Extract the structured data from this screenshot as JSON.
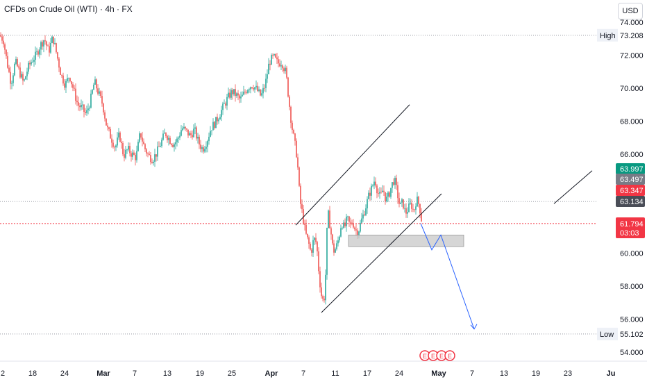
{
  "header": {
    "title": "CFDs on Crude Oil (WTI) · 4h · FX",
    "currency": "USD"
  },
  "colors": {
    "up": "#26a69a",
    "down": "#ef5350",
    "current": "#f23645",
    "projection": "#2962ff",
    "zone": "#c8c8c8"
  },
  "chart_data": {
    "type": "candlestick",
    "ylim": [
      53.5,
      74.7
    ],
    "y_ticks": [
      "74.000",
      "72.000",
      "70.000",
      "68.000",
      "66.000",
      "64.000",
      "62.000",
      "60.000",
      "58.000",
      "56.000",
      "54.000"
    ],
    "x_ticks": [
      {
        "label": "2",
        "bold": false
      },
      {
        "label": "18",
        "bold": false
      },
      {
        "label": "24",
        "bold": false
      },
      {
        "label": "Mar",
        "bold": true
      },
      {
        "label": "7",
        "bold": false
      },
      {
        "label": "13",
        "bold": false
      },
      {
        "label": "19",
        "bold": false
      },
      {
        "label": "25",
        "bold": false
      },
      {
        "label": "Apr",
        "bold": true
      },
      {
        "label": "7",
        "bold": false
      },
      {
        "label": "11",
        "bold": false
      },
      {
        "label": "17",
        "bold": false
      },
      {
        "label": "24",
        "bold": false
      },
      {
        "label": "May",
        "bold": true
      },
      {
        "label": "7",
        "bold": false
      },
      {
        "label": "13",
        "bold": false
      },
      {
        "label": "19",
        "bold": false
      },
      {
        "label": "23",
        "bold": false
      },
      {
        "label": "Ju",
        "bold": true
      }
    ],
    "high": {
      "label": "High",
      "value": "73.208"
    },
    "low": {
      "label": "Low",
      "value": "55.102"
    },
    "price_tags": [
      {
        "value": "63.997",
        "color": "#089981"
      },
      {
        "value": "63.497",
        "color": "#787b86"
      },
      {
        "value": "63.347",
        "color": "#f23645"
      },
      {
        "value": "63.134",
        "color": "#4a4d57"
      }
    ],
    "current": {
      "value": "61.794",
      "countdown": "03:03"
    },
    "path": [
      [
        0,
        73.2
      ],
      [
        5,
        72.9
      ],
      [
        10,
        71.6
      ],
      [
        16,
        70.3
      ],
      [
        22,
        71.6
      ],
      [
        28,
        71.0
      ],
      [
        34,
        70.3
      ],
      [
        40,
        71.2
      ],
      [
        46,
        71.7
      ],
      [
        52,
        72.0
      ],
      [
        58,
        72.6
      ],
      [
        64,
        73.0
      ],
      [
        70,
        72.2
      ],
      [
        76,
        73.1
      ],
      [
        82,
        72.0
      ],
      [
        88,
        70.8
      ],
      [
        94,
        70.2
      ],
      [
        100,
        70.8
      ],
      [
        106,
        69.9
      ],
      [
        112,
        69.0
      ],
      [
        118,
        68.8
      ],
      [
        124,
        68.4
      ],
      [
        130,
        69.2
      ],
      [
        136,
        70.4
      ],
      [
        142,
        69.7
      ],
      [
        148,
        69.0
      ],
      [
        154,
        67.6
      ],
      [
        160,
        67.0
      ],
      [
        166,
        66.4
      ],
      [
        172,
        67.2
      ],
      [
        178,
        65.9
      ],
      [
        184,
        66.3
      ],
      [
        190,
        66.0
      ],
      [
        196,
        65.8
      ],
      [
        202,
        67.3
      ],
      [
        208,
        66.4
      ],
      [
        214,
        65.9
      ],
      [
        220,
        65.7
      ],
      [
        226,
        66.1
      ],
      [
        232,
        66.7
      ],
      [
        238,
        67.3
      ],
      [
        244,
        66.9
      ],
      [
        250,
        66.6
      ],
      [
        256,
        66.9
      ],
      [
        262,
        67.6
      ],
      [
        268,
        67.4
      ],
      [
        274,
        67.1
      ],
      [
        280,
        67.5
      ],
      [
        286,
        66.7
      ],
      [
        292,
        66.3
      ],
      [
        298,
        66.8
      ],
      [
        304,
        67.6
      ],
      [
        310,
        67.9
      ],
      [
        316,
        68.4
      ],
      [
        322,
        68.9
      ],
      [
        328,
        69.4
      ],
      [
        334,
        69.8
      ],
      [
        340,
        69.6
      ],
      [
        346,
        69.3
      ],
      [
        352,
        69.7
      ],
      [
        358,
        70.1
      ],
      [
        364,
        70.2
      ],
      [
        370,
        69.9
      ],
      [
        376,
        69.5
      ],
      [
        382,
        70.2
      ],
      [
        388,
        71.6
      ],
      [
        394,
        71.9
      ],
      [
        400,
        71.5
      ],
      [
        406,
        71.6
      ],
      [
        412,
        70.9
      ],
      [
        416,
        69.3
      ],
      [
        420,
        67.8
      ],
      [
        424,
        66.8
      ],
      [
        428,
        65.8
      ],
      [
        432,
        63.2
      ],
      [
        436,
        62.3
      ],
      [
        440,
        61.2
      ],
      [
        444,
        60.7
      ],
      [
        448,
        60.0
      ],
      [
        452,
        60.9
      ],
      [
        456,
        60.6
      ],
      [
        460,
        58.5
      ],
      [
        464,
        57.1
      ],
      [
        468,
        57.4
      ],
      [
        472,
        62.6
      ],
      [
        476,
        61.5
      ],
      [
        480,
        60.1
      ],
      [
        484,
        60.3
      ],
      [
        488,
        60.9
      ],
      [
        492,
        61.9
      ],
      [
        496,
        61.5
      ],
      [
        500,
        62.1
      ],
      [
        504,
        61.7
      ],
      [
        508,
        61.9
      ],
      [
        512,
        61.4
      ],
      [
        516,
        61.3
      ],
      [
        520,
        61.9
      ],
      [
        524,
        62.4
      ],
      [
        528,
        63.0
      ],
      [
        532,
        63.6
      ],
      [
        536,
        64.0
      ],
      [
        540,
        64.5
      ],
      [
        544,
        63.7
      ],
      [
        548,
        63.4
      ],
      [
        552,
        63.9
      ],
      [
        556,
        63.2
      ],
      [
        560,
        63.5
      ],
      [
        564,
        64.1
      ],
      [
        568,
        64.5
      ],
      [
        572,
        63.7
      ],
      [
        576,
        62.8
      ],
      [
        580,
        63.1
      ],
      [
        584,
        62.4
      ],
      [
        588,
        62.7
      ],
      [
        592,
        63.0
      ],
      [
        596,
        62.5
      ],
      [
        600,
        63.3
      ],
      [
        604,
        62.9
      ],
      [
        608,
        61.8
      ]
    ],
    "channel": [
      {
        "x1": 426,
        "y1": 61.7,
        "x2": 590,
        "y2": 69.0
      },
      {
        "x1": 463,
        "y1": 56.4,
        "x2": 636,
        "y2": 63.6
      }
    ],
    "side_line": {
      "x1": 798,
      "y1": 63.0,
      "x2": 853,
      "y2": 65.0
    },
    "zone": {
      "x1": 502,
      "x2": 668,
      "y1": 61.1,
      "y2": 60.4
    },
    "projection": [
      [
        606,
        61.8
      ],
      [
        622,
        60.2
      ],
      [
        635,
        61.1
      ],
      [
        683,
        55.4
      ]
    ],
    "events": {
      "x": 607,
      "count": 4,
      "label": "E"
    }
  }
}
